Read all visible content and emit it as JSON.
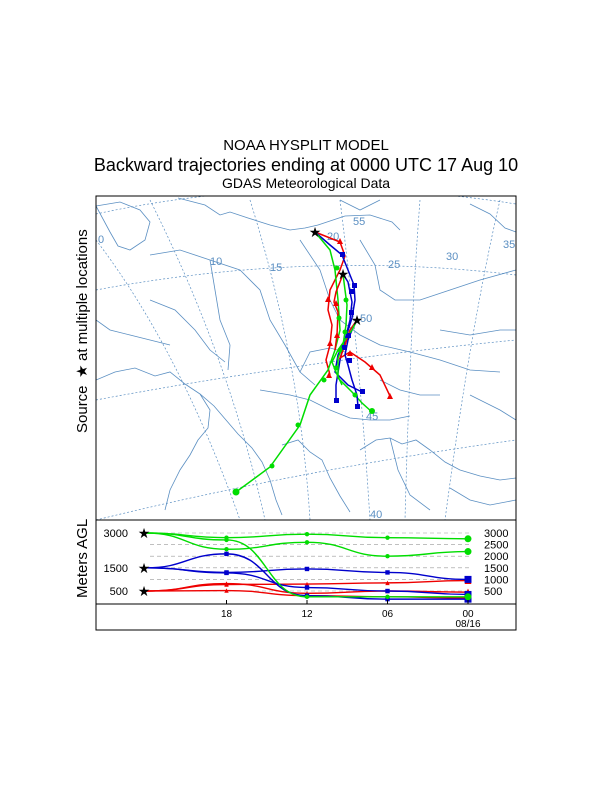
{
  "header": {
    "line1": "NOAA HYSPLIT MODEL",
    "line2": "Backward trajectories ending at 0000 UTC 17 Aug 10",
    "line3": "GDAS Meteorological Data"
  },
  "map_panel": {
    "side_label_text": "Source",
    "side_label_suffix": "at multiple locations",
    "star_symbol": "★",
    "longitude_labels": [
      "10",
      "15",
      "20",
      "25",
      "30",
      "35"
    ],
    "latitude_labels": [
      "55",
      "50",
      "45",
      "40"
    ]
  },
  "height_panel": {
    "ylabel": "Meters AGL",
    "left_ticks": [
      "3000",
      "1500",
      "500"
    ],
    "right_ticks": [
      "3000",
      "2500",
      "2000",
      "1500",
      "1000",
      "500"
    ],
    "time_ticks": [
      "18",
      "12",
      "06",
      "00"
    ],
    "date_label": "08/16"
  },
  "colors": {
    "red": "#ee0000",
    "blue": "#0000cc",
    "green": "#00dd00",
    "map_lines": "#5b8fc2",
    "frame": "#000000"
  },
  "chart_data": {
    "type": "line",
    "title": "Backward trajectories ending at 0000 UTC 17 Aug 10",
    "ylabel": "Meters AGL",
    "x_ticks": [
      "18",
      "12",
      "06",
      "00"
    ],
    "x_hours_back": [
      24,
      18,
      12,
      6,
      0
    ],
    "ylim": [
      0,
      3300
    ],
    "series": [
      {
        "color": "red",
        "start_height": 500,
        "heights": [
          500,
          520,
          300,
          250,
          200
        ]
      },
      {
        "color": "red",
        "start_height": 500,
        "heights": [
          500,
          780,
          800,
          850,
          950
        ]
      },
      {
        "color": "red",
        "start_height": 500,
        "heights": [
          500,
          820,
          400,
          500,
          450
        ]
      },
      {
        "color": "blue",
        "start_height": 1500,
        "heights": [
          1500,
          1300,
          1450,
          1300,
          1000
        ]
      },
      {
        "color": "blue",
        "start_height": 1500,
        "heights": [
          1500,
          1280,
          650,
          500,
          350
        ]
      },
      {
        "color": "blue",
        "start_height": 1500,
        "heights": [
          1500,
          2100,
          300,
          150,
          150
        ]
      },
      {
        "color": "green",
        "start_height": 3000,
        "heights": [
          3000,
          2800,
          2950,
          2800,
          2750
        ]
      },
      {
        "color": "green",
        "start_height": 3000,
        "heights": [
          3000,
          2300,
          2600,
          2000,
          2200
        ]
      },
      {
        "color": "green",
        "start_height": 3000,
        "heights": [
          3000,
          2700,
          250,
          250,
          250
        ]
      }
    ]
  }
}
